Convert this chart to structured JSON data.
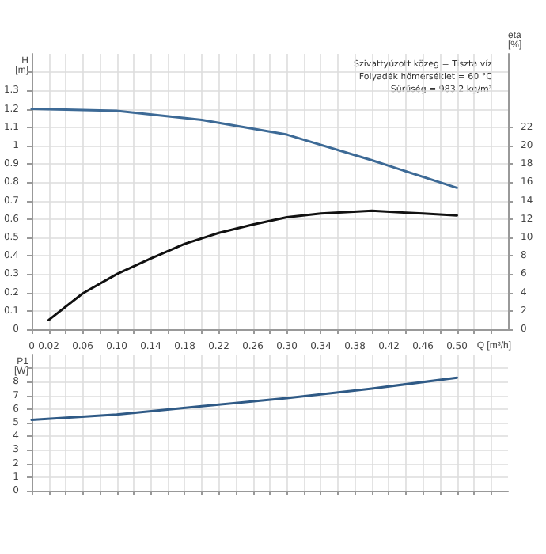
{
  "chart_data": [
    {
      "type": "line",
      "xlabel": "Q [m³/h]",
      "ylabel": "H\n[m]",
      "y2label": "eta\n[%]",
      "annotations": [
        "Szivattyúzott közeg = Tiszta víz",
        "Folyadék hőmérséklet = 60 °C",
        "Sűrűség = 983.2 kg/m³"
      ],
      "series": [
        {
          "color": "#3d6a96",
          "x": [
            0,
            0.1,
            0.2,
            0.3,
            0.4,
            0.5
          ],
          "values": [
            1.2,
            1.19,
            1.14,
            1.06,
            0.92,
            0.77
          ]
        },
        {
          "color": "#111111",
          "axis": "y2",
          "x": [
            0.02,
            0.06,
            0.1,
            0.14,
            0.18,
            0.22,
            0.26,
            0.3,
            0.34,
            0.4,
            0.46,
            0.5
          ],
          "values": [
            1.0,
            3.9,
            6.0,
            7.7,
            9.3,
            10.5,
            11.4,
            12.2,
            12.6,
            12.9,
            12.6,
            12.4
          ]
        }
      ],
      "xlim": [
        0,
        0.56
      ],
      "xticks": [
        0,
        0.02,
        {
          "value": 0.04,
          "label": null
        },
        0.06,
        {
          "value": 0.08,
          "label": null
        },
        {
          "value": 0.1,
          "label": "0.10"
        },
        {
          "value": 0.12,
          "label": null
        },
        0.14,
        {
          "value": 0.16,
          "label": null
        },
        0.18,
        {
          "value": 0.2,
          "label": null
        },
        0.22,
        {
          "value": 0.24,
          "label": null
        },
        0.26,
        {
          "value": 0.28,
          "label": null
        },
        {
          "value": 0.3,
          "label": "0.30"
        },
        {
          "value": 0.32,
          "label": null
        },
        0.34,
        {
          "value": 0.36,
          "label": null
        },
        0.38,
        {
          "value": 0.4,
          "label": null
        },
        0.42,
        {
          "value": 0.44,
          "label": null
        },
        0.46,
        {
          "value": 0.48,
          "label": null
        },
        {
          "value": 0.5,
          "label": "0.50"
        },
        {
          "value": 0.52,
          "label": null
        },
        {
          "value": 0.54,
          "label": null
        }
      ],
      "ylim": [
        0,
        1.5
      ],
      "yticks": [
        0,
        0.1,
        0.2,
        0.3,
        0.4,
        0.5,
        0.6,
        0.7,
        0.8,
        0.9,
        1.0,
        1.1,
        1.2,
        1.3,
        {
          "value": 1.4,
          "label": null
        }
      ],
      "y2lim": [
        0,
        30
      ],
      "y2ticks": [
        0,
        2,
        4,
        6,
        8,
        10,
        12,
        14,
        16,
        18,
        20,
        22
      ],
      "grid": true,
      "marker": "none",
      "line_style": "solid"
    },
    {
      "type": "line",
      "ylabel": "P1\n[W]",
      "series": [
        {
          "color": "#2f5a86",
          "x": [
            0,
            0.1,
            0.2,
            0.3,
            0.4,
            0.5
          ],
          "values": [
            5.2,
            5.6,
            6.2,
            6.8,
            7.5,
            8.3
          ]
        }
      ],
      "xlim": [
        0,
        0.56
      ],
      "xticks": [
        0,
        0.02,
        0.04,
        0.06,
        0.08,
        0.1,
        0.12,
        0.14,
        0.16,
        0.18,
        0.2,
        0.22,
        0.24,
        0.26,
        0.28,
        0.3,
        0.32,
        0.34,
        0.36,
        0.38,
        0.4,
        0.42,
        0.44,
        0.46,
        0.48,
        0.5,
        0.52,
        0.54
      ],
      "ylim": [
        0,
        10
      ],
      "yticks": [
        0,
        1,
        2,
        3,
        4,
        5,
        6,
        7,
        8,
        {
          "value": 9,
          "label": null
        }
      ],
      "tick_labels": "y",
      "grid": true,
      "marker": "none",
      "line_style": "solid"
    }
  ]
}
